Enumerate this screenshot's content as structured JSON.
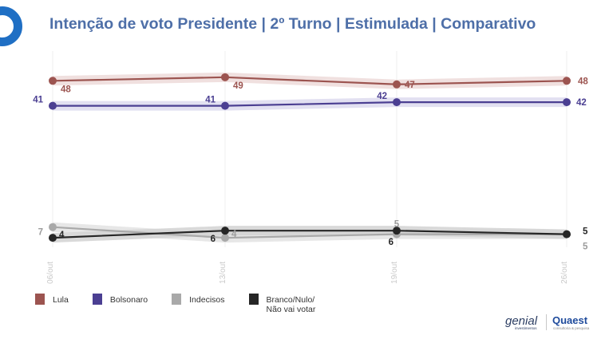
{
  "title": "Intenção de voto Presidente | 2º Turno | Estimulada | Comparativo",
  "chart_data": {
    "type": "line",
    "categories": [
      "06/out",
      "13/out",
      "19/out",
      "26/out"
    ],
    "ylim": [
      0,
      55
    ],
    "grid": false,
    "legend_position": "bottom-left",
    "series": [
      {
        "name": "Lula",
        "values": [
          48,
          49,
          47,
          48
        ],
        "color": "#9c5450",
        "band": "#eddad9"
      },
      {
        "name": "Bolsonaro",
        "values": [
          41,
          41,
          42,
          42
        ],
        "color": "#4b3f92",
        "band": "#dddbee"
      },
      {
        "name": "Indecisos",
        "values": [
          7,
          4,
          5,
          5
        ],
        "color": "#a9a9a9",
        "band": "#e3e3e3"
      },
      {
        "name": "Branco/Nulo/\nNão vai votar",
        "values": [
          4,
          6,
          6,
          5
        ],
        "color": "#262626",
        "band": "#d2d2d2"
      }
    ]
  },
  "brands": {
    "genial": "genial",
    "genial_sub": "investimentos",
    "quaest": "Quaest",
    "quaest_sub": "consultoria & pesquisa"
  }
}
